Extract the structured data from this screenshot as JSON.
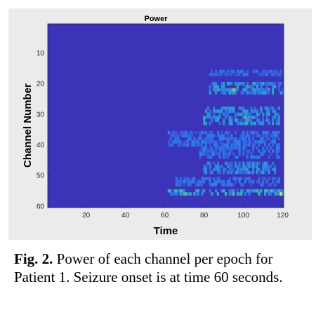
{
  "chart_data": {
    "type": "heatmap",
    "title": "Power",
    "xlabel": "Time",
    "ylabel": "Channel Number",
    "xlim": [
      1,
      120
    ],
    "ylim": [
      1,
      60
    ],
    "y_reversed": true,
    "x_ticks": [
      "20",
      "40",
      "60",
      "80",
      "100",
      "120"
    ],
    "y_ticks": [
      "10",
      "20",
      "30",
      "40",
      "50",
      "60"
    ],
    "colormap": "parula",
    "colors": {
      "background": "#3b34b8",
      "low": "#3d3fd6",
      "mid": "#2c7fe8",
      "high": "#38b7b0",
      "peak": "#f0e33a"
    },
    "grid": false,
    "onset_time": 60,
    "active_bands": [
      {
        "channel_from": 16,
        "channel_to": 17,
        "time_from": 83,
        "time_to": 120,
        "level": 0.25
      },
      {
        "channel_from": 20,
        "channel_to": 23,
        "time_from": 83,
        "time_to": 120,
        "level": 0.45
      },
      {
        "channel_from": 28,
        "channel_to": 33,
        "time_from": 80,
        "time_to": 118,
        "level": 0.45
      },
      {
        "channel_from": 36,
        "channel_to": 40,
        "time_from": 62,
        "time_to": 118,
        "level": 0.3
      },
      {
        "channel_from": 41,
        "channel_to": 44,
        "time_from": 78,
        "time_to": 118,
        "level": 0.3
      },
      {
        "channel_from": 46,
        "channel_to": 49,
        "time_from": 80,
        "time_to": 116,
        "level": 0.4
      },
      {
        "channel_from": 51,
        "channel_to": 53,
        "time_from": 66,
        "time_to": 118,
        "level": 0.3
      },
      {
        "channel_from": 55,
        "channel_to": 56,
        "time_from": 62,
        "time_to": 120,
        "level": 0.55
      }
    ],
    "hot_cells": [
      {
        "time": 95,
        "channel": 22,
        "level": 0.85
      },
      {
        "time": 101,
        "channel": 31,
        "level": 0.7
      },
      {
        "time": 119,
        "channel": 56,
        "level": 1.0
      },
      {
        "time": 95,
        "channel": 56,
        "level": 0.7
      },
      {
        "time": 108,
        "channel": 56,
        "level": 0.65
      }
    ]
  },
  "caption": {
    "label": "Fig. 2.",
    "text": "Power of each channel per epoch for Patient 1. Seizure onset is at time 60 seconds."
  }
}
